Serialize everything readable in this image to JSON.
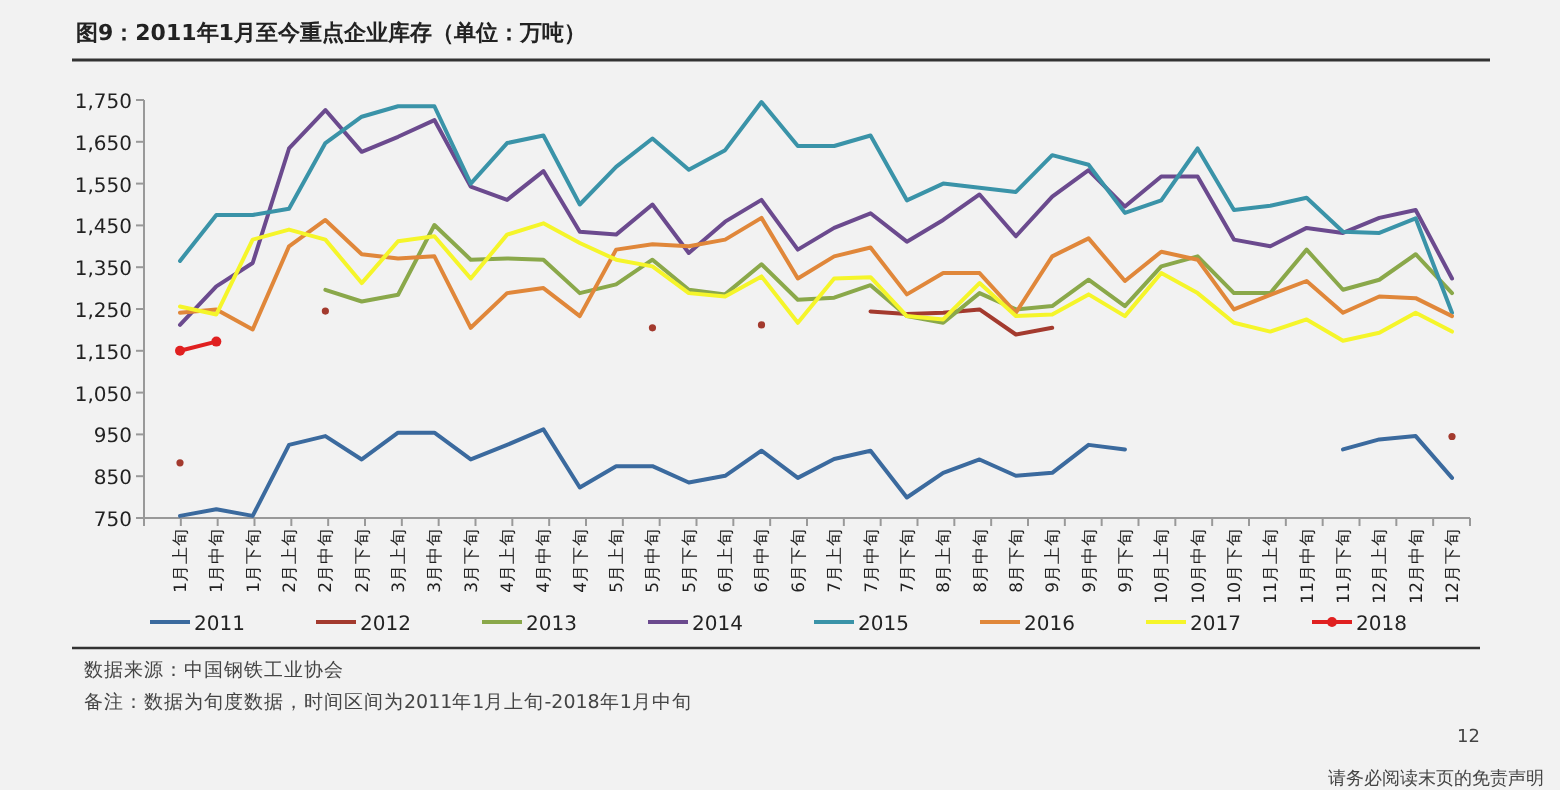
{
  "chart_data": {
    "type": "line",
    "title": "图9：2011年1月至今重点企业库存（单位：万吨）",
    "categories": [
      "1月上旬",
      "1月中旬",
      "1月下旬",
      "2月上旬",
      "2月中旬",
      "2月下旬",
      "3月上旬",
      "3月中旬",
      "3月下旬",
      "4月上旬",
      "4月中旬",
      "4月下旬",
      "5月上旬",
      "5月中旬",
      "5月下旬",
      "6月上旬",
      "6月中旬",
      "6月下旬",
      "7月上旬",
      "7月中旬",
      "7月下旬",
      "8月上旬",
      "8月中旬",
      "8月下旬",
      "9月上旬",
      "9月中旬",
      "9月下旬",
      "10月上旬",
      "10月中旬",
      "10月下旬",
      "11月上旬",
      "11月中旬",
      "11月下旬",
      "12月上旬",
      "12月中旬",
      "12月下旬"
    ],
    "series": [
      {
        "name": "2011",
        "color": "#3b6a9e",
        "values": [
          755,
          771,
          755,
          925,
          946,
          890,
          954,
          954,
          890,
          925,
          962,
          823,
          874,
          874,
          835,
          851,
          911,
          846,
          891,
          911,
          799,
          858,
          890,
          851,
          858,
          925,
          914,
          null,
          null,
          null,
          null,
          null,
          914,
          938,
          946,
          846
        ]
      },
      {
        "name": "2012",
        "color": "#a33a2e",
        "values": [
          882,
          null,
          null,
          null,
          1245,
          null,
          null,
          null,
          null,
          null,
          null,
          null,
          null,
          1205,
          null,
          null,
          1212,
          null,
          null,
          1244,
          1238,
          1241,
          1249,
          1189,
          1205,
          null,
          null,
          null,
          null,
          null,
          null,
          null,
          null,
          null,
          null,
          945
        ]
      },
      {
        "name": "2013",
        "color": "#8aa84a",
        "values": [
          null,
          null,
          null,
          null,
          1296,
          1268,
          1284,
          1451,
          1368,
          1371,
          1368,
          1288,
          1309,
          1368,
          1296,
          1285,
          1357,
          1272,
          1277,
          1307,
          1233,
          1217,
          1288,
          1249,
          1257,
          1320,
          1257,
          1352,
          1376,
          1288,
          1288,
          1392,
          1296,
          1320,
          1381,
          1288
        ]
      },
      {
        "name": "2014",
        "color": "#6b4a8e",
        "values": [
          1212,
          1304,
          1360,
          1634,
          1726,
          1626,
          1662,
          1702,
          1543,
          1511,
          1580,
          1435,
          1428,
          1500,
          1384,
          1459,
          1511,
          1392,
          1444,
          1479,
          1411,
          1463,
          1524,
          1424,
          1519,
          1582,
          1495,
          1567,
          1567,
          1416,
          1400,
          1444,
          1432,
          1468,
          1487,
          1323
        ]
      },
      {
        "name": "2015",
        "color": "#3a93a8",
        "values": [
          1365,
          1475,
          1475,
          1490,
          1647,
          1710,
          1735,
          1735,
          1550,
          1647,
          1665,
          1500,
          1590,
          1658,
          1583,
          1630,
          1745,
          1640,
          1640,
          1665,
          1510,
          1550,
          1540,
          1530,
          1618,
          1595,
          1480,
          1510,
          1634,
          1487,
          1497,
          1516,
          1435,
          1432,
          1467,
          1241
        ]
      },
      {
        "name": "2016",
        "color": "#e0873a",
        "values": [
          1241,
          1249,
          1201,
          1400,
          1463,
          1381,
          1371,
          1376,
          1205,
          1288,
          1300,
          1233,
          1392,
          1405,
          1400,
          1416,
          1468,
          1323,
          1376,
          1397,
          1285,
          1336,
          1336,
          1241,
          1376,
          1419,
          1317,
          1387,
          1368,
          1249,
          1284,
          1317,
          1241,
          1280,
          1276,
          1233
        ]
      },
      {
        "name": "2017",
        "color": "#f5f52a",
        "values": [
          1256,
          1237,
          1416,
          1440,
          1416,
          1312,
          1412,
          1424,
          1323,
          1428,
          1455,
          1408,
          1368,
          1352,
          1288,
          1280,
          1328,
          1217,
          1323,
          1326,
          1233,
          1225,
          1312,
          1233,
          1237,
          1285,
          1233,
          1336,
          1288,
          1217,
          1196,
          1225,
          1174,
          1193,
          1241,
          1196
        ]
      },
      {
        "name": "2018",
        "color": "#e02020",
        "marker": "circle",
        "values": [
          1150,
          1172,
          null,
          null,
          null,
          null,
          null,
          null,
          null,
          null,
          null,
          null,
          null,
          null,
          null,
          null,
          null,
          null,
          null,
          null,
          null,
          null,
          null,
          null,
          null,
          null,
          null,
          null,
          null,
          null,
          null,
          null,
          null,
          null,
          null,
          null
        ]
      }
    ],
    "ylim": [
      750,
      1750
    ],
    "yticks": [
      {
        "value": 750,
        "label": "750"
      },
      {
        "value": 850,
        "label": "850"
      },
      {
        "value": 950,
        "label": "950"
      },
      {
        "value": 1050,
        "label": "1,050"
      },
      {
        "value": 1150,
        "label": "1,150"
      },
      {
        "value": 1250,
        "label": "1,250"
      },
      {
        "value": 1350,
        "label": "1,350"
      },
      {
        "value": 1450,
        "label": "1,450"
      },
      {
        "value": 1550,
        "label": "1,550"
      },
      {
        "value": 1650,
        "label": "1,650"
      },
      {
        "value": 1750,
        "label": "1,750"
      }
    ],
    "grid": false,
    "legend": "bottom",
    "marker": "none",
    "annotations": [
      "数据来源：中国钢铁工业协会",
      "备注：数据为旬度数据，时间区间为2011年1月上旬-2018年1月中旬",
      "12",
      "请务必阅读末页的免责声明"
    ]
  }
}
